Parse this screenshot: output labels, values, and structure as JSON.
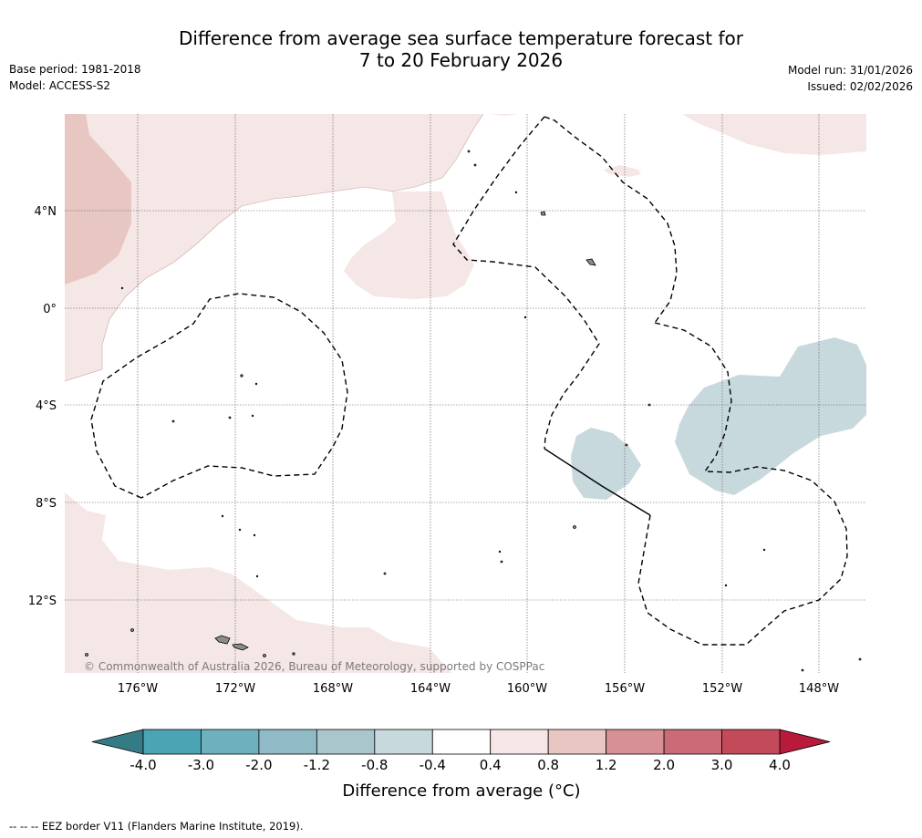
{
  "header": {
    "title_line1": "Difference from average sea surface temperature forecast for",
    "title_line2": "7 to 20 February 2026",
    "base_period": "Base period: 1981-2018",
    "model": "Model: ACCESS-S2",
    "model_run": "Model run: 31/01/2026",
    "issued": "Issued: 02/02/2026"
  },
  "map": {
    "lat_labels": [
      "4°N",
      "0°",
      "4°S",
      "8°S",
      "12°S"
    ],
    "lon_labels": [
      "176°W",
      "172°W",
      "168°W",
      "164°W",
      "160°W",
      "156°W",
      "152°W",
      "148°W"
    ],
    "copyright": "© Commonwealth of Australia 2026, Bureau of Meteorology, supported by COSPPac",
    "colors": {
      "warm_light": "#f5e7e6",
      "warm_mid": "#e8c7c3",
      "cool_light": "#c8d9dd",
      "eez_line": "#000000",
      "land": "#8c8c8c"
    }
  },
  "colorbar": {
    "title": "Difference from average (°C)",
    "ticks": [
      "-4.0",
      "-3.0",
      "-2.0",
      "-1.2",
      "-0.8",
      "-0.4",
      "0.4",
      "0.8",
      "1.2",
      "2.0",
      "3.0",
      "4.0"
    ],
    "colors": [
      "#4aa4b3",
      "#6fb0bf",
      "#8fbac6",
      "#aac6cd",
      "#c8d9dd",
      "#ffffff",
      "#f5e7e6",
      "#e8c7c3",
      "#d79095",
      "#cb6b78",
      "#c24a59"
    ],
    "under_color": "#357b86",
    "over_color": "#b71a3a"
  },
  "footnote": "--  --  -- EEZ border V11 (Flanders Marine Institute, 2019)."
}
